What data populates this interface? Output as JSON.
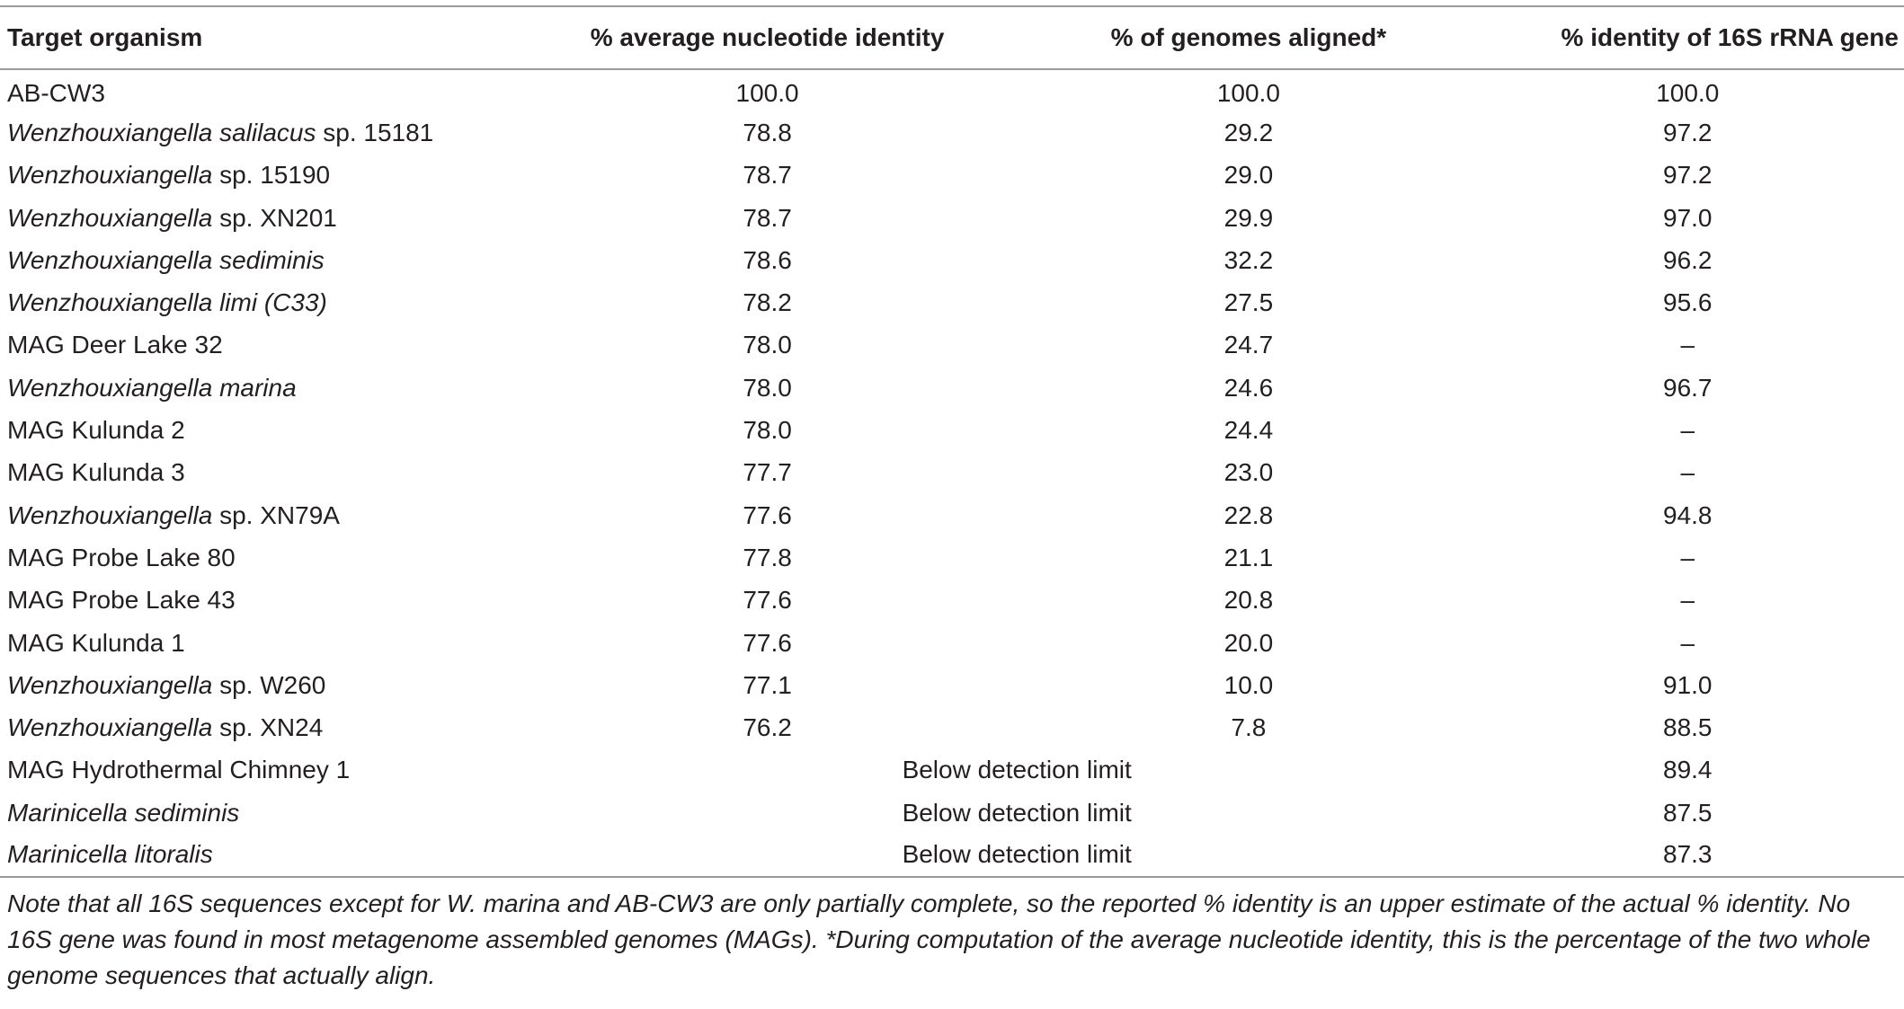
{
  "headers": [
    "Target organism",
    "% average nucleotide identity",
    "% of genomes aligned*",
    "% identity of 16S rRNA gene"
  ],
  "rows": [
    {
      "organism_italic": "",
      "organism_plain": "AB-CW3",
      "ani": "100.0",
      "aligned": "100.0",
      "rrna": "100.0"
    },
    {
      "organism_italic": "Wenzhouxiangella salilacus",
      "organism_plain": " sp. 15181",
      "ani": "78.8",
      "aligned": "29.2",
      "rrna": "97.2"
    },
    {
      "organism_italic": "Wenzhouxiangella",
      "organism_plain": " sp. 15190",
      "ani": "78.7",
      "aligned": "29.0",
      "rrna": "97.2"
    },
    {
      "organism_italic": "Wenzhouxiangella",
      "organism_plain": " sp. XN201",
      "ani": "78.7",
      "aligned": "29.9",
      "rrna": "97.0"
    },
    {
      "organism_italic": "Wenzhouxiangella sediminis",
      "organism_plain": "",
      "ani": "78.6",
      "aligned": "32.2",
      "rrna": "96.2"
    },
    {
      "organism_italic": "Wenzhouxiangella limi (C33)",
      "organism_plain": "",
      "ani": "78.2",
      "aligned": "27.5",
      "rrna": "95.6"
    },
    {
      "organism_italic": "",
      "organism_plain": "MAG Deer Lake 32",
      "ani": "78.0",
      "aligned": "24.7",
      "rrna": "–"
    },
    {
      "organism_italic": "Wenzhouxiangella marina",
      "organism_plain": "",
      "ani": "78.0",
      "aligned": "24.6",
      "rrna": "96.7"
    },
    {
      "organism_italic": "",
      "organism_plain": "MAG Kulunda 2",
      "ani": "78.0",
      "aligned": "24.4",
      "rrna": "–"
    },
    {
      "organism_italic": "",
      "organism_plain": "MAG Kulunda 3",
      "ani": "77.7",
      "aligned": "23.0",
      "rrna": "–"
    },
    {
      "organism_italic": "Wenzhouxiangella",
      "organism_plain": " sp. XN79A",
      "ani": "77.6",
      "aligned": "22.8",
      "rrna": "94.8"
    },
    {
      "organism_italic": "",
      "organism_plain": "MAG Probe Lake 80",
      "ani": "77.8",
      "aligned": "21.1",
      "rrna": "–"
    },
    {
      "organism_italic": "",
      "organism_plain": "MAG Probe Lake 43",
      "ani": "77.6",
      "aligned": "20.8",
      "rrna": "–"
    },
    {
      "organism_italic": "",
      "organism_plain": "MAG Kulunda 1",
      "ani": "77.6",
      "aligned": "20.0",
      "rrna": "–"
    },
    {
      "organism_italic": "Wenzhouxiangella",
      "organism_plain": " sp. W260",
      "ani": "77.1",
      "aligned": "10.0",
      "rrna": "91.0"
    },
    {
      "organism_italic": "Wenzhouxiangella",
      "organism_plain": " sp. XN24",
      "ani": "76.2",
      "aligned": "7.8",
      "rrna": "88.5"
    }
  ],
  "merged_rows": [
    {
      "organism_italic": "",
      "organism_plain": "MAG Hydrothermal Chimney 1",
      "merged": "Below detection limit",
      "rrna": "89.4"
    },
    {
      "organism_italic": "Marinicella sediminis",
      "organism_plain": "",
      "merged": "Below detection limit",
      "rrna": "87.5"
    },
    {
      "organism_italic": "Marinicella litoralis",
      "organism_plain": "",
      "merged": "Below detection limit",
      "rrna": "87.3"
    }
  ],
  "note": "Note that all 16S sequences except for W. marina and AB-CW3 are only partially complete, so the reported % identity is an upper estimate of the actual % identity. No 16S gene was found in most metagenome assembled genomes (MAGs). *During computation of the average nucleotide identity, this is the percentage of the two whole genome sequences that actually align."
}
